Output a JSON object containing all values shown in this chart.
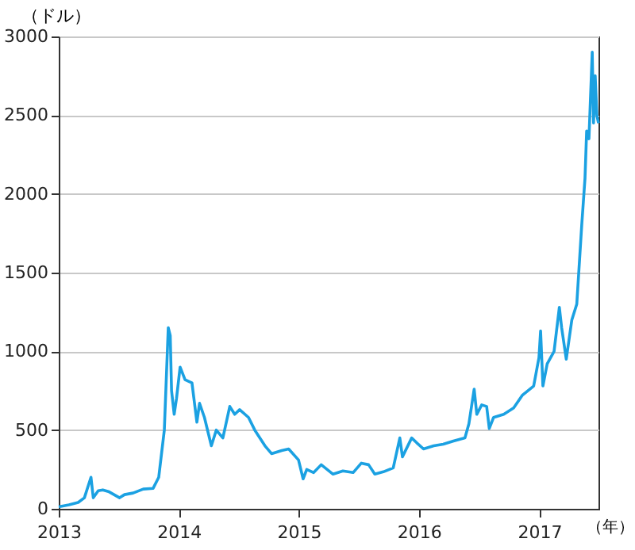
{
  "chart_data": {
    "type": "line",
    "xlabel": "（年）",
    "ylabel": "（ドル）",
    "x": [
      "2013-01-01",
      "2013-02-01",
      "2013-03-01",
      "2013-03-20",
      "2013-04-09",
      "2013-04-16",
      "2013-05-01",
      "2013-05-15",
      "2013-06-01",
      "2013-07-05",
      "2013-07-20",
      "2013-08-15",
      "2013-09-15",
      "2013-10-15",
      "2013-11-01",
      "2013-11-18",
      "2013-11-30",
      "2013-12-06",
      "2013-12-10",
      "2013-12-18",
      "2013-12-25",
      "2014-01-05",
      "2014-01-20",
      "2014-02-10",
      "2014-02-25",
      "2014-03-05",
      "2014-03-20",
      "2014-04-10",
      "2014-04-25",
      "2014-05-15",
      "2014-06-05",
      "2014-06-20",
      "2014-07-05",
      "2014-08-01",
      "2014-08-20",
      "2014-09-20",
      "2014-10-10",
      "2014-11-10",
      "2014-12-01",
      "2014-12-31",
      "2015-01-14",
      "2015-01-25",
      "2015-02-15",
      "2015-03-10",
      "2015-04-15",
      "2015-05-15",
      "2015-06-15",
      "2015-07-10",
      "2015-08-01",
      "2015-08-20",
      "2015-09-15",
      "2015-10-15",
      "2015-11-04",
      "2015-11-12",
      "2015-12-10",
      "2015-12-25",
      "2016-01-15",
      "2016-02-15",
      "2016-03-15",
      "2016-04-15",
      "2016-05-20",
      "2016-06-01",
      "2016-06-17",
      "2016-06-25",
      "2016-07-10",
      "2016-07-25",
      "2016-08-02",
      "2016-08-15",
      "2016-09-15",
      "2016-10-15",
      "2016-11-10",
      "2016-12-15",
      "2016-12-31",
      "2017-01-05",
      "2017-01-12",
      "2017-01-25",
      "2017-02-15",
      "2017-03-03",
      "2017-03-10",
      "2017-03-24",
      "2017-04-10",
      "2017-04-25",
      "2017-05-10",
      "2017-05-20",
      "2017-05-25",
      "2017-06-01",
      "2017-06-11",
      "2017-06-15",
      "2017-06-20",
      "2017-06-25",
      "2017-06-30"
    ],
    "series": [
      {
        "color": "#1ba1e2",
        "values": [
          13,
          25,
          40,
          70,
          200,
          70,
          115,
          120,
          110,
          70,
          90,
          100,
          125,
          130,
          200,
          500,
          1150,
          1100,
          750,
          600,
          700,
          900,
          820,
          800,
          550,
          670,
          580,
          400,
          500,
          450,
          650,
          600,
          630,
          580,
          500,
          400,
          350,
          370,
          380,
          310,
          190,
          250,
          230,
          280,
          220,
          240,
          230,
          290,
          280,
          220,
          235,
          260,
          450,
          330,
          450,
          420,
          380,
          400,
          410,
          430,
          450,
          540,
          760,
          600,
          660,
          650,
          510,
          580,
          600,
          640,
          720,
          780,
          960,
          1130,
          780,
          920,
          1000,
          1280,
          1150,
          950,
          1200,
          1300,
          1800,
          2100,
          2400,
          2350,
          2900,
          2450,
          2750,
          2500,
          2450
        ]
      }
    ],
    "xlim": [
      "2013-01-01",
      "2017-06-30"
    ],
    "xticks": [
      {
        "value": "2013-01-01",
        "label": "2013"
      },
      {
        "value": "2014-01-01",
        "label": "2014"
      },
      {
        "value": "2015-01-01",
        "label": "2015"
      },
      {
        "value": "2016-01-01",
        "label": "2016"
      },
      {
        "value": "2017-01-01",
        "label": "2017"
      }
    ],
    "ylim": [
      0,
      3000
    ],
    "yticks": [
      0,
      500,
      1000,
      1500,
      2000,
      2500,
      3000
    ],
    "grid": "y",
    "line_style": "solid",
    "marker": "none"
  }
}
